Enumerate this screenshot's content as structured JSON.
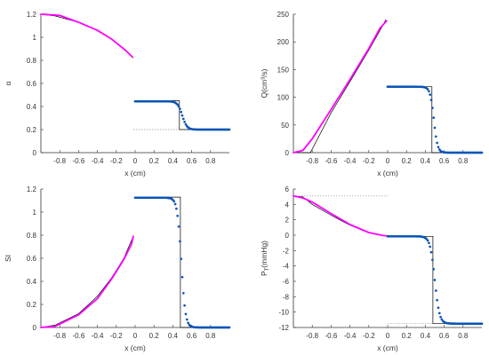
{
  "colors": {
    "magenta": "#ff00ff",
    "blue": "#0a55b8",
    "axis": "#333333",
    "guide": "#999999",
    "ref": "#000000"
  },
  "chart_data": [
    {
      "type": "line",
      "xlabel": "x (cm)",
      "ylabel": "α",
      "ylim": [
        0,
        1.2
      ],
      "yticks": [
        0,
        0.2,
        0.4,
        0.6,
        0.8,
        1,
        1.2
      ],
      "ytick_labels": [
        "0",
        "0.2",
        "0.4",
        "0.6",
        "0.8",
        "1",
        "1.2"
      ],
      "xlim": [
        -1,
        1
      ],
      "xticks": [
        -0.8,
        -0.6,
        -0.4,
        -0.2,
        0,
        0.2,
        0.4,
        0.6,
        0.8
      ],
      "xtick_labels": [
        "-0.8",
        "-0.6",
        "-0.4",
        "-0.2",
        "0",
        "0.2",
        "0.4",
        "0.6",
        "0.8"
      ],
      "left_ref": [
        [
          -1,
          1.2
        ],
        [
          -0.85,
          1.185
        ],
        [
          -0.6,
          1.13
        ],
        [
          -0.4,
          1.06
        ],
        [
          -0.25,
          0.985
        ],
        [
          -0.1,
          0.89
        ],
        [
          -0.02,
          0.82
        ]
      ],
      "left_curve": [
        [
          -1,
          1.2
        ],
        [
          -0.8,
          1.19
        ],
        [
          -0.6,
          1.13
        ],
        [
          -0.4,
          1.06
        ],
        [
          -0.25,
          0.985
        ],
        [
          -0.1,
          0.885
        ],
        [
          -0.03,
          0.83
        ]
      ],
      "right_ref": {
        "y_high": 0.45,
        "y_low": 0.2,
        "x_jump": 0.47,
        "x_end": 1
      },
      "right_points": {
        "y_high": 0.445,
        "y_low": 0.2,
        "x_mid": 0.5,
        "width": 0.025,
        "x_start": 0,
        "x_end": 1
      },
      "guide": {
        "y": 0.2,
        "x_from": -0.02,
        "x_to": 0.47
      }
    },
    {
      "type": "line",
      "xlabel": "x (cm)",
      "ylabel": "Q(cm³/s)",
      "ylim": [
        0,
        250
      ],
      "yticks": [
        0,
        50,
        100,
        150,
        200,
        250
      ],
      "ytick_labels": [
        "0",
        "50",
        "100",
        "150",
        "200",
        "250"
      ],
      "xlim": [
        -1,
        1
      ],
      "xticks": [
        -0.8,
        -0.6,
        -0.4,
        -0.2,
        0,
        0.2,
        0.4,
        0.6,
        0.8
      ],
      "xtick_labels": [
        "-0.8",
        "-0.6",
        "-0.4",
        "-0.2",
        "0",
        "0.2",
        "0.4",
        "0.6",
        "0.8"
      ],
      "left_ref": [
        [
          -1,
          0
        ],
        [
          -0.82,
          0
        ],
        [
          -0.6,
          72
        ],
        [
          -0.4,
          128
        ],
        [
          -0.2,
          185
        ],
        [
          -0.05,
          230
        ],
        [
          -0.02,
          240
        ]
      ],
      "left_curve": [
        [
          -1,
          0
        ],
        [
          -0.9,
          4
        ],
        [
          -0.8,
          25
        ],
        [
          -0.6,
          78
        ],
        [
          -0.4,
          132
        ],
        [
          -0.2,
          188
        ],
        [
          -0.08,
          225
        ],
        [
          -0.01,
          238
        ]
      ],
      "right_ref": {
        "y_high": 119,
        "y_low": 0,
        "x_jump": 0.47,
        "x_end": 1
      },
      "right_points": {
        "y_high": 119,
        "y_low": 0,
        "x_mid": 0.49,
        "width": 0.02,
        "x_start": 0,
        "x_end": 1
      },
      "guide": null
    },
    {
      "type": "line",
      "xlabel": "x (cm)",
      "ylabel": "SI",
      "ylim": [
        0,
        1.2
      ],
      "yticks": [
        0,
        0.2,
        0.4,
        0.6,
        0.8,
        1,
        1.2
      ],
      "ytick_labels": [
        "0",
        "0.2",
        "0.4",
        "0.6",
        "0.8",
        "1",
        "1.2"
      ],
      "xlim": [
        -1,
        1
      ],
      "xticks": [
        -0.8,
        -0.6,
        -0.4,
        -0.2,
        0,
        0.2,
        0.4,
        0.6,
        0.8
      ],
      "xtick_labels": [
        "-0.8",
        "-0.6",
        "-0.4",
        "-0.2",
        "0",
        "0.2",
        "0.4",
        "0.6",
        "0.8"
      ],
      "left_ref": [
        [
          -1,
          0
        ],
        [
          -0.85,
          0.02
        ],
        [
          -0.6,
          0.12
        ],
        [
          -0.4,
          0.27
        ],
        [
          -0.25,
          0.43
        ],
        [
          -0.12,
          0.6
        ],
        [
          -0.02,
          0.79
        ]
      ],
      "left_curve": [
        [
          -1,
          0
        ],
        [
          -0.85,
          0.01
        ],
        [
          -0.6,
          0.11
        ],
        [
          -0.4,
          0.25
        ],
        [
          -0.25,
          0.42
        ],
        [
          -0.12,
          0.59
        ],
        [
          -0.04,
          0.72
        ],
        [
          -0.02,
          0.79
        ]
      ],
      "right_ref": {
        "y_high": 1.13,
        "y_low": 0,
        "x_jump": 0.48,
        "x_end": 1
      },
      "right_points": {
        "y_high": 1.125,
        "y_low": 0,
        "x_mid": 0.49,
        "width": 0.022,
        "x_start": 0,
        "x_end": 1
      },
      "guide": null
    },
    {
      "type": "line",
      "xlabel": "x (cm)",
      "ylabel": "P_T(mmHg)",
      "ylabel_main": "P",
      "ylabel_sub": "T",
      "ylabel_tail": "(mmHg)",
      "ylim": [
        -12,
        6
      ],
      "yticks": [
        -12,
        -10,
        -8,
        -6,
        -4,
        -2,
        0,
        2,
        4,
        6
      ],
      "ytick_labels": [
        "-12",
        "-10",
        "-8",
        "-6",
        "-4",
        "-2",
        "0",
        "2",
        "4",
        "6"
      ],
      "xlim": [
        -1,
        1
      ],
      "xticks": [
        -0.8,
        -0.6,
        -0.4,
        -0.2,
        0,
        0.2,
        0.4,
        0.6,
        0.8
      ],
      "xtick_labels": [
        "-0.8",
        "-0.6",
        "-0.4",
        "-0.2",
        "0",
        "0.2",
        "0.4",
        "0.6",
        "0.8"
      ],
      "left_ref": [
        [
          -1,
          5.1
        ],
        [
          -0.9,
          5.0
        ],
        [
          -0.8,
          4.0
        ],
        [
          -0.6,
          2.6
        ],
        [
          -0.4,
          1.3
        ],
        [
          -0.2,
          0.3
        ],
        [
          -0.05,
          -0.05
        ],
        [
          0,
          -0.1
        ]
      ],
      "left_curve": [
        [
          -1,
          5.1
        ],
        [
          -0.9,
          4.85
        ],
        [
          -0.8,
          4.3
        ],
        [
          -0.6,
          2.8
        ],
        [
          -0.4,
          1.4
        ],
        [
          -0.2,
          0.35
        ],
        [
          -0.05,
          -0.05
        ],
        [
          0,
          -0.1
        ]
      ],
      "right_ref": {
        "y_high": -0.15,
        "y_low": -11.5,
        "x_jump": 0.48,
        "x_end": 1
      },
      "right_points": {
        "y_high": -0.15,
        "y_low": -11.5,
        "x_mid": 0.5,
        "width": 0.025,
        "x_start": 0,
        "x_end": 1
      },
      "guide_top": {
        "y": 5.1,
        "x_from": -1,
        "x_to": 0
      },
      "guide": {
        "y": -11.5,
        "x_from": 0,
        "x_to": 0.48
      }
    }
  ]
}
